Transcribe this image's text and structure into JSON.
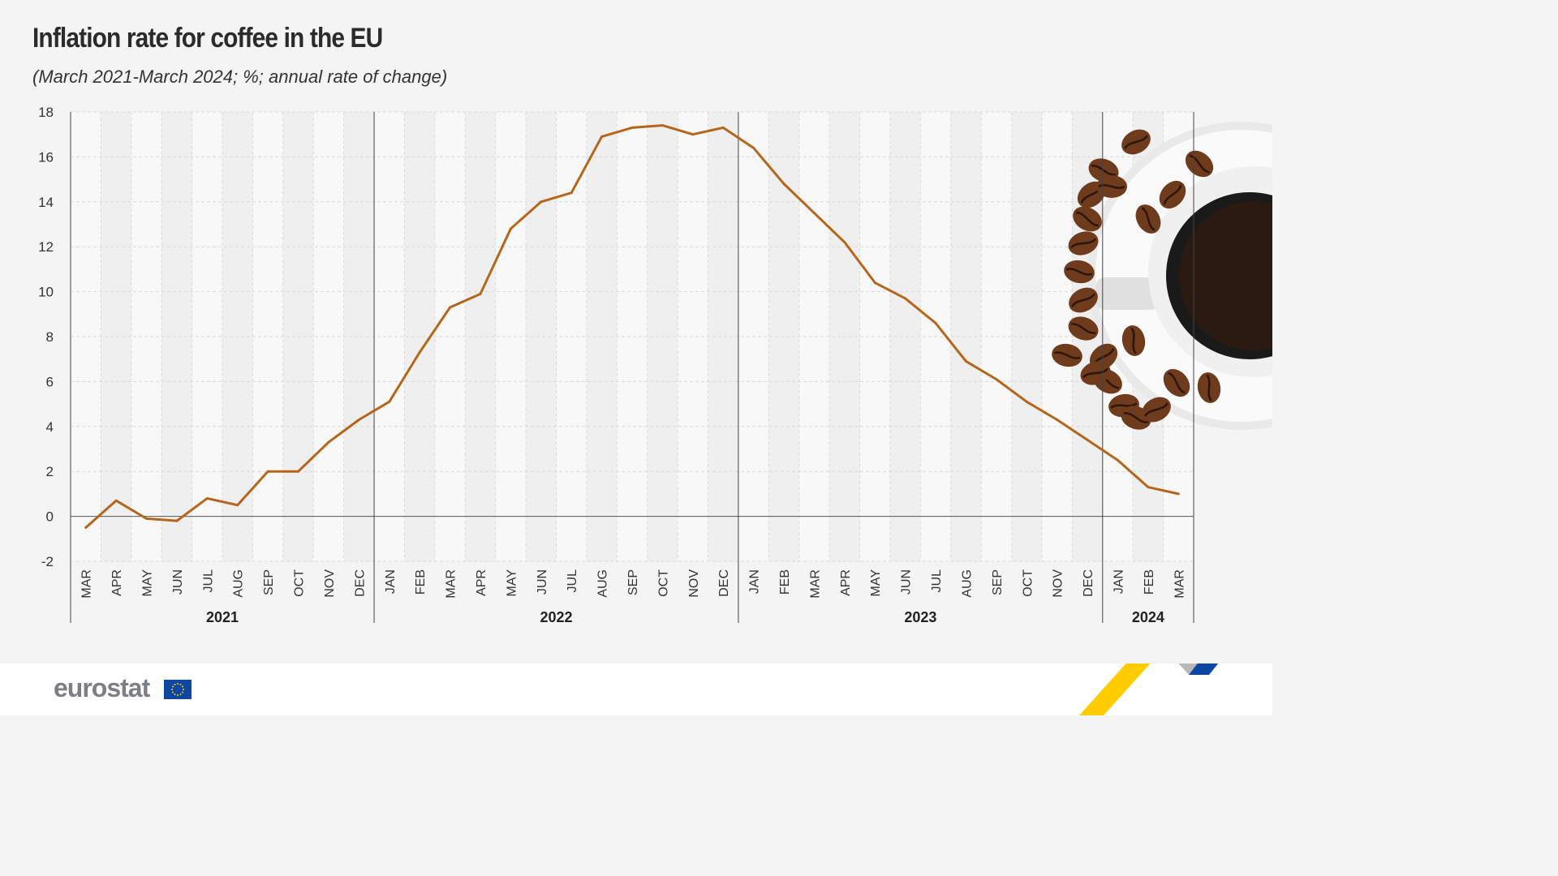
{
  "header": {
    "title": "Inflation rate for coffee in the EU",
    "subtitle": "(March 2021-March 2024; %; annual rate of change)"
  },
  "footer": {
    "logo_text": "eurostat"
  },
  "colors": {
    "line": "#b5661b",
    "background": "#f4f4f4",
    "eu_blue": "#0e47a1",
    "eu_yellow": "#ffcc00"
  },
  "chart_data": {
    "type": "line",
    "title": "Inflation rate for coffee in the EU",
    "subtitle": "(March 2021-March 2024; %; annual rate of change)",
    "ylim": [
      -2,
      18
    ],
    "yticks": [
      18,
      16,
      14,
      12,
      10,
      8,
      6,
      4,
      2,
      0,
      -2
    ],
    "grid": true,
    "categories": [
      "MAR",
      "APR",
      "MAY",
      "JUN",
      "JUL",
      "AUG",
      "SEP",
      "OCT",
      "NOV",
      "DEC",
      "JAN",
      "FEB",
      "MAR",
      "APR",
      "MAY",
      "JUN",
      "JUL",
      "AUG",
      "SEP",
      "OCT",
      "NOV",
      "DEC",
      "JAN",
      "FEB",
      "MAR",
      "APR",
      "MAY",
      "JUN",
      "JUL",
      "AUG",
      "SEP",
      "OCT",
      "NOV",
      "DEC",
      "JAN",
      "FEB",
      "MAR"
    ],
    "years": [
      {
        "label": "2021",
        "months": 10
      },
      {
        "label": "2022",
        "months": 12
      },
      {
        "label": "2023",
        "months": 12
      },
      {
        "label": "2024",
        "months": 3
      }
    ],
    "values": [
      -0.5,
      0.7,
      -0.1,
      -0.2,
      0.8,
      0.5,
      2.0,
      2.0,
      3.3,
      4.3,
      5.1,
      7.3,
      9.3,
      9.9,
      12.8,
      14.0,
      14.4,
      16.9,
      17.3,
      17.4,
      17.0,
      17.3,
      16.4,
      14.8,
      13.5,
      12.2,
      10.4,
      9.7,
      8.6,
      6.9,
      6.1,
      5.1,
      4.3,
      3.4,
      2.5,
      1.3,
      1.0
    ]
  }
}
